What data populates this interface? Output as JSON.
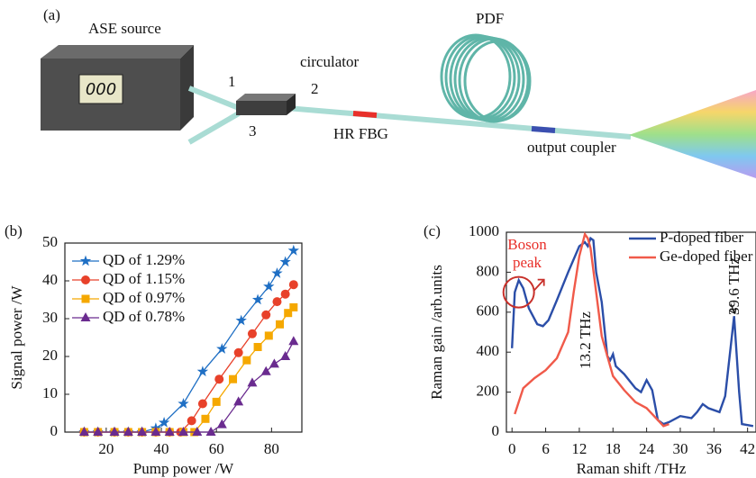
{
  "diagram": {
    "label": "(a)",
    "ase_source": "ASE source",
    "display": "000",
    "circulator": "circulator",
    "ports": [
      "1",
      "2",
      "3"
    ],
    "pdf": "PDF",
    "hr_fbg": "HR FBG",
    "output_coupler": "output coupler"
  },
  "chart_data": [
    {
      "type": "line",
      "label": "(b)",
      "xlabel": "Pump power /W",
      "ylabel": "Signal power /W",
      "xlim": [
        5,
        91
      ],
      "ylim": [
        0,
        50
      ],
      "xticks": [
        20,
        40,
        60,
        80
      ],
      "yticks": [
        0,
        10,
        20,
        30,
        40,
        50
      ],
      "legend": "upper left",
      "series": [
        {
          "name": "QD of 1.29%",
          "color": "#1f6fc4",
          "marker": "star",
          "x": [
            12,
            17,
            23,
            28,
            33,
            38,
            41,
            48,
            55,
            62,
            69,
            75,
            79,
            82,
            85,
            88
          ],
          "values": [
            0,
            0,
            0,
            0,
            0,
            1,
            2.5,
            7.5,
            16,
            22,
            29.5,
            35,
            38.5,
            42,
            45,
            48
          ]
        },
        {
          "name": "QD of 1.15%",
          "color": "#e8412a",
          "marker": "circle",
          "x": [
            12,
            17,
            23,
            28,
            33,
            38,
            43,
            47,
            51,
            55,
            61,
            68,
            73,
            78,
            82,
            85,
            88
          ],
          "values": [
            0,
            0,
            0,
            0,
            0,
            0,
            0,
            0,
            3,
            7.5,
            14,
            21,
            26,
            31,
            34.5,
            36.5,
            39
          ]
        },
        {
          "name": "QD of 0.97%",
          "color": "#f5a800",
          "marker": "square",
          "x": [
            12,
            17,
            23,
            28,
            33,
            38,
            43,
            48,
            52,
            56,
            60,
            66,
            71,
            75,
            79,
            83,
            86,
            88
          ],
          "values": [
            0,
            0,
            0,
            0,
            0,
            0,
            0,
            0,
            0,
            3.5,
            8,
            14,
            19,
            22.5,
            25.5,
            28.5,
            31.5,
            33
          ]
        },
        {
          "name": "QD of 0.78%",
          "color": "#6a2b8f",
          "marker": "triangle",
          "x": [
            12,
            17,
            23,
            28,
            33,
            38,
            43,
            48,
            53,
            58,
            62,
            68,
            73,
            78,
            81,
            85,
            88
          ],
          "values": [
            0,
            0,
            0,
            0,
            0,
            0,
            0,
            0,
            0,
            0,
            2,
            8,
            13,
            16,
            18,
            20,
            24
          ]
        }
      ]
    },
    {
      "type": "line",
      "label": "(c)",
      "xlabel": "Raman shift /THz",
      "ylabel": "Raman gain /arb.units",
      "xlim": [
        -1,
        43.5
      ],
      "ylim": [
        0,
        1000
      ],
      "xticks": [
        0,
        6,
        12,
        18,
        24,
        30,
        36,
        42
      ],
      "yticks": [
        0,
        200,
        400,
        600,
        800,
        1000
      ],
      "legend": "upper right",
      "annotations": [
        "Boson",
        "peak",
        "13.2 THz",
        "39.6 THz"
      ],
      "series": [
        {
          "name": "P-doped fiber",
          "color": "#2b4ea8",
          "x": [
            0,
            0.5,
            1.2,
            2,
            3,
            4.5,
            5.5,
            6.5,
            8,
            10,
            12,
            13,
            13.5,
            14,
            14.5,
            15,
            16,
            17,
            17.5,
            18,
            18.5,
            20,
            22,
            23,
            24,
            25,
            26,
            27,
            28,
            30,
            32,
            33,
            34,
            35,
            37,
            38,
            39.6,
            40.5,
            41,
            43
          ],
          "values": [
            420,
            700,
            760,
            720,
            620,
            540,
            530,
            560,
            660,
            800,
            930,
            950,
            930,
            970,
            960,
            800,
            650,
            380,
            360,
            390,
            330,
            290,
            220,
            200,
            260,
            210,
            60,
            40,
            50,
            80,
            70,
            100,
            140,
            120,
            100,
            180,
            580,
            200,
            40,
            30
          ]
        },
        {
          "name": "Ge-doped fiber",
          "color": "#f05a4a",
          "x": [
            0.5,
            2,
            4,
            6,
            8,
            10,
            11,
            12,
            13,
            13.5,
            14,
            15,
            16,
            17,
            18,
            20,
            22,
            24,
            26,
            27,
            28
          ],
          "values": [
            90,
            220,
            270,
            310,
            370,
            500,
            700,
            880,
            990,
            970,
            920,
            700,
            480,
            380,
            280,
            210,
            150,
            120,
            60,
            30,
            40
          ]
        }
      ]
    }
  ]
}
